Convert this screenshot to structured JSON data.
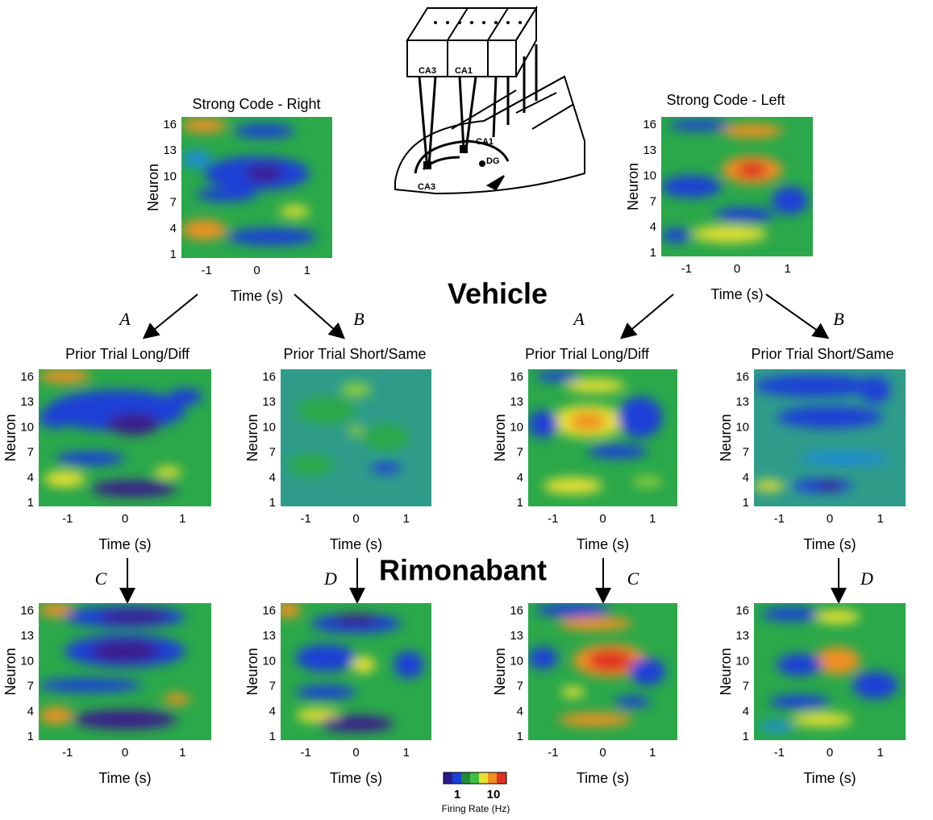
{
  "panels": [
    {
      "title": "Strong Code - Right",
      "y_label": "Neuron",
      "x_label": "Time (s)",
      "y_ticks": [
        16,
        13,
        10,
        7,
        4,
        1
      ],
      "x_ticks": [
        -1,
        0,
        1
      ]
    },
    {
      "title": "Strong Code - Left",
      "y_label": "Neuron",
      "x_label": "Time (s)",
      "y_ticks": [
        16,
        13,
        10,
        7,
        4,
        1
      ],
      "x_ticks": [
        -1,
        0,
        1
      ]
    },
    {
      "title": "Prior Trial Long/Diff",
      "letter": "A",
      "y_label": "Neuron",
      "x_label": "Time (s)",
      "y_ticks": [
        16,
        13,
        10,
        7,
        4,
        1
      ],
      "x_ticks": [
        -1,
        0,
        1
      ]
    },
    {
      "title": "Prior Trial Short/Same",
      "letter": "B",
      "y_label": "Neuron",
      "x_label": "Time (s)",
      "y_ticks": [
        16,
        13,
        10,
        7,
        4,
        1
      ],
      "x_ticks": [
        -1,
        0,
        1
      ]
    },
    {
      "title": "Prior Trial Long/Diff",
      "letter": "A",
      "y_label": "Neuron",
      "x_label": "Time (s)",
      "y_ticks": [
        16,
        13,
        10,
        7,
        4,
        1
      ],
      "x_ticks": [
        -1,
        0,
        1
      ]
    },
    {
      "title": "Prior Trial Short/Same",
      "letter": "B",
      "y_label": "Neuron",
      "x_label": "Time (s)",
      "y_ticks": [
        16,
        13,
        10,
        7,
        4,
        1
      ],
      "x_ticks": [
        -1,
        0,
        1
      ]
    },
    {
      "letter": "C",
      "y_label": "Neuron",
      "x_label": "Time (s)",
      "y_ticks": [
        16,
        13,
        10,
        7,
        4,
        1
      ],
      "x_ticks": [
        -1,
        0,
        1
      ]
    },
    {
      "letter": "D",
      "y_label": "Neuron",
      "x_label": "Time (s)",
      "y_ticks": [
        16,
        13,
        10,
        7,
        4,
        1
      ],
      "x_ticks": [
        -1,
        0,
        1
      ]
    },
    {
      "letter": "C",
      "y_label": "Neuron",
      "x_label": "Time (s)",
      "y_ticks": [
        16,
        13,
        10,
        7,
        4,
        1
      ],
      "x_ticks": [
        -1,
        0,
        1
      ]
    },
    {
      "letter": "D",
      "y_label": "Neuron",
      "x_label": "Time (s)",
      "y_ticks": [
        16,
        13,
        10,
        7,
        4,
        1
      ],
      "x_ticks": [
        -1,
        0,
        1
      ]
    }
  ],
  "labels": {
    "vehicle": "Vehicle",
    "rimonabant": "Rimonabant"
  },
  "colorbar": {
    "min_label": 1,
    "max_label": 10,
    "title": "Firing Rate (Hz)"
  },
  "diagram": {
    "probe_left": "CA3",
    "probe_right": "CA1",
    "region_ca1": "CA1",
    "region_dg": "DG",
    "region_ca3": "CA3"
  }
}
